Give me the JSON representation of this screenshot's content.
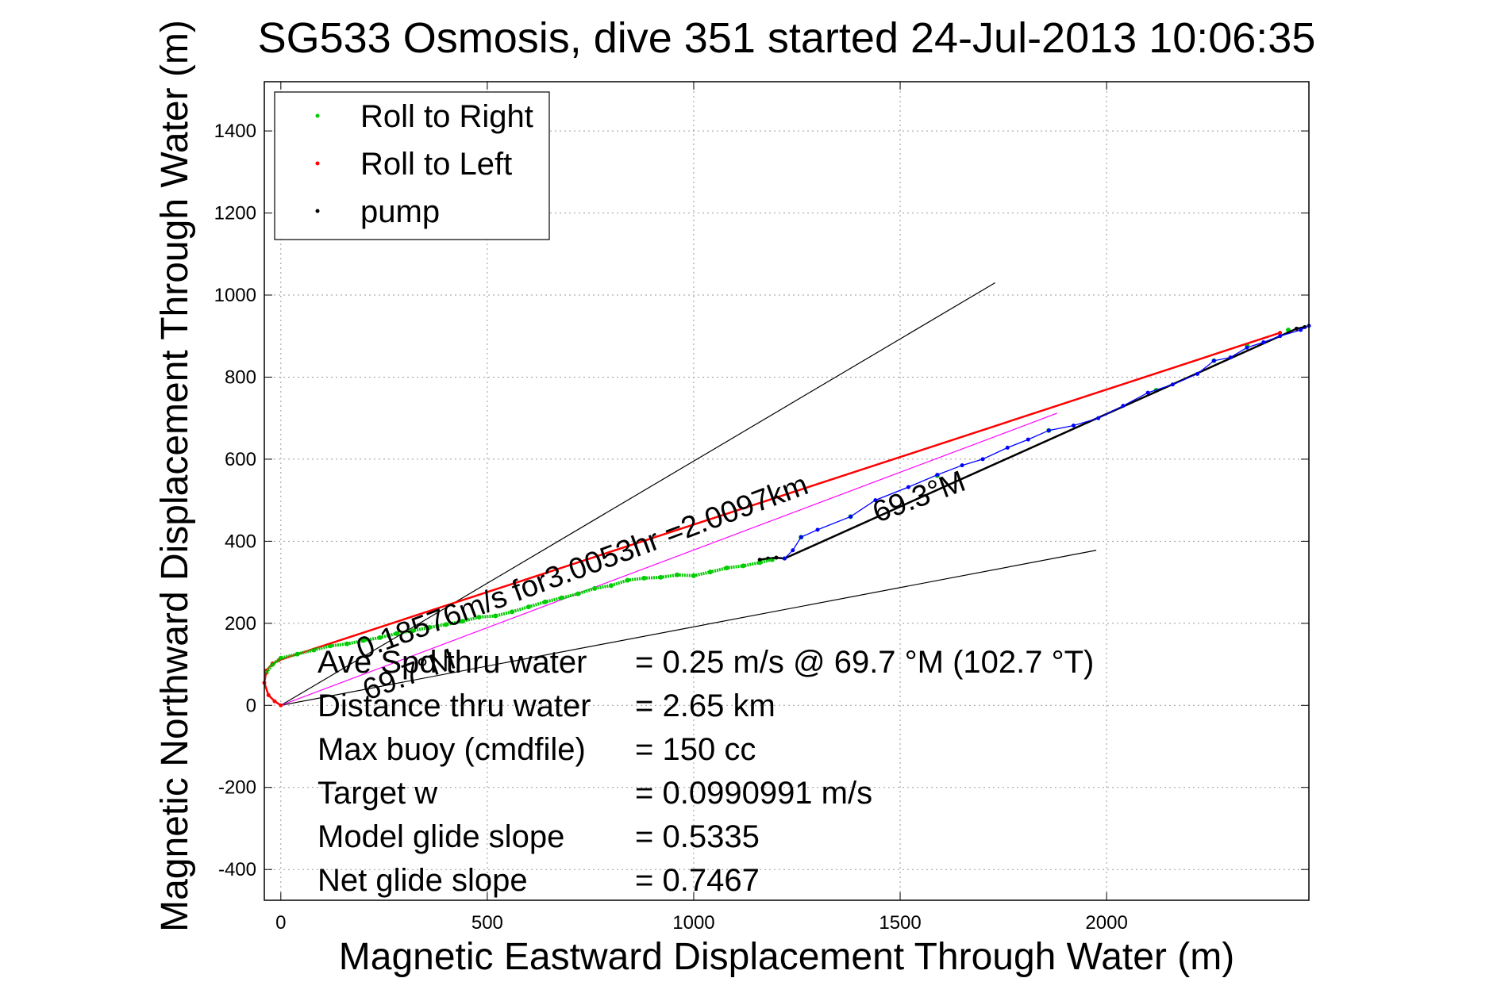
{
  "chart_data": {
    "type": "line",
    "title": "SG533 Osmosis, dive 351 started 24-Jul-2013 10:06:35",
    "xlabel": "Magnetic Eastward Displacement Through Water (m)",
    "ylabel": "Magnetic Northward Displacement Through Water (m)",
    "xlim": [
      -40,
      2490
    ],
    "ylim": [
      -475,
      1520
    ],
    "grid": true,
    "legend_position": "top-left",
    "x_ticks": [
      {
        "value": 0,
        "label": "0"
      },
      {
        "value": 500,
        "label": "500"
      },
      {
        "value": 1000,
        "label": "1000"
      },
      {
        "value": 1500,
        "label": "1500"
      },
      {
        "value": 2000,
        "label": "2000"
      }
    ],
    "y_ticks": [
      {
        "value": -400,
        "label": "-400"
      },
      {
        "value": -200,
        "label": "-200"
      },
      {
        "value": 0,
        "label": "0"
      },
      {
        "value": 200,
        "label": "200"
      },
      {
        "value": 400,
        "label": "400"
      },
      {
        "value": 600,
        "label": "600"
      },
      {
        "value": 800,
        "label": "800"
      },
      {
        "value": 1000,
        "label": "1000"
      },
      {
        "value": 1200,
        "label": "1200"
      },
      {
        "value": 1400,
        "label": "1400"
      }
    ],
    "legend": [
      {
        "label": "Roll to Right",
        "color": "#00cc00"
      },
      {
        "label": "Roll to Left",
        "color": "#ff0000"
      },
      {
        "label": "pump",
        "color": "#000000"
      }
    ],
    "series": [
      {
        "name": "Roll to Right",
        "color": "#00cc00",
        "style": "points",
        "x": [
          -35,
          -20,
          0,
          40,
          80,
          120,
          160,
          200,
          240,
          280,
          320,
          360,
          400,
          440,
          480,
          520,
          560,
          600,
          640,
          680,
          720,
          760,
          800,
          840,
          880,
          920,
          960,
          1000,
          1040,
          1080,
          1120,
          1160,
          1190,
          1260,
          1380,
          1590,
          1860,
          2120,
          2260,
          2340,
          2440
        ],
        "y": [
          80,
          100,
          115,
          125,
          135,
          145,
          150,
          158,
          165,
          175,
          182,
          190,
          197,
          205,
          215,
          218,
          228,
          240,
          252,
          262,
          272,
          285,
          292,
          305,
          310,
          312,
          318,
          316,
          325,
          335,
          340,
          348,
          355,
          410,
          460,
          560,
          670,
          768,
          840,
          878,
          915
        ]
      },
      {
        "name": "Roll to Left",
        "color": "#ff0000",
        "x": [
          0,
          -15,
          -30,
          -40,
          -35,
          -20,
          -5,
          2420
        ],
        "y": [
          0,
          10,
          25,
          55,
          85,
          102,
          110,
          908
        ]
      },
      {
        "name": "pump",
        "color": "#000000",
        "x": [
          1160,
          1180,
          1200,
          1220,
          2460,
          2480
        ],
        "y": [
          355,
          358,
          360,
          358,
          918,
          922
        ]
      },
      {
        "name": "",
        "color": "#0000ff",
        "x": [
          1220,
          1240,
          1260,
          1300,
          1380,
          1440,
          1520,
          1590,
          1650,
          1700,
          1760,
          1810,
          1860,
          1920,
          1980,
          2040,
          2100,
          2160,
          2220,
          2260,
          2300,
          2340,
          2380,
          2420,
          2470,
          2490
        ],
        "y": [
          358,
          378,
          410,
          428,
          460,
          500,
          532,
          562,
          585,
          600,
          628,
          648,
          670,
          682,
          700,
          730,
          762,
          782,
          808,
          840,
          848,
          872,
          885,
          900,
          915,
          925
        ]
      }
    ],
    "reference_lines": [
      {
        "color": "#000000",
        "x": [
          0,
          1730
        ],
        "y": [
          0,
          1030
        ]
      },
      {
        "color": "#000000",
        "x": [
          0,
          1975
        ],
        "y": [
          0,
          378
        ]
      },
      {
        "color": "#ff00ff",
        "x": [
          0,
          1880
        ],
        "y": [
          0,
          712
        ]
      }
    ],
    "annotations": [
      {
        "text": "0.18576m/s for3.0053hr =2.0097km",
        "x": 195,
        "y": 112,
        "angle": -20.4
      },
      {
        "text": "69.3°M",
        "x": 1445,
        "y": 445,
        "angle": -20.4
      },
      {
        "text": "69.7°M",
        "x": 210,
        "y": 12,
        "angle": -20.4
      }
    ],
    "stats": [
      {
        "label": "Ave Spd thru water",
        "value": "=  0.25 m/s @  69.7 °M (102.7 °T)"
      },
      {
        "label": "Distance thru water",
        "value": "=  2.65 km"
      },
      {
        "label": "Max buoy (cmdfile)",
        "value": "= 150 cc"
      },
      {
        "label": "Target w",
        "value": "= 0.0990991 m/s"
      },
      {
        "label": "Model glide slope",
        "value": "= 0.5335"
      },
      {
        "label": "Net glide slope",
        "value": "= 0.7467"
      }
    ]
  }
}
